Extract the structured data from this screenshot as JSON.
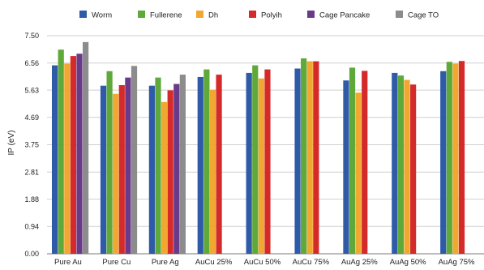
{
  "chart_data": {
    "type": "bar",
    "title": "",
    "xlabel": "",
    "ylabel": "IP (eV)",
    "ylim": [
      0,
      7.5
    ],
    "yticks": [
      "0.00",
      "0.94",
      "1.88",
      "2.81",
      "3.75",
      "4.69",
      "5.63",
      "6.56",
      "7.50"
    ],
    "grid": true,
    "legend_position": "top",
    "categories": [
      "Pure Au",
      "Pure Cu",
      "Pure Ag",
      "AuCu 25%",
      "AuCu 50%",
      "AuCu 75%",
      "AuAg 25%",
      "AuAg 50%",
      "AuAg 75%"
    ],
    "series": [
      {
        "name": "Worm",
        "color": "#2e5aa8",
        "values": [
          6.48,
          5.78,
          5.78,
          6.08,
          6.22,
          6.37,
          5.96,
          6.22,
          6.28
        ]
      },
      {
        "name": "Fullerene",
        "color": "#5fa83a",
        "values": [
          7.02,
          6.28,
          6.06,
          6.34,
          6.48,
          6.72,
          6.4,
          6.13,
          6.6
        ]
      },
      {
        "name": "Dh",
        "color": "#f0a830",
        "values": [
          6.54,
          5.5,
          5.22,
          5.64,
          6.03,
          6.62,
          5.54,
          5.98,
          6.54
        ]
      },
      {
        "name": "Polyih",
        "color": "#d42a2a",
        "values": [
          6.8,
          5.8,
          5.62,
          6.16,
          6.34,
          6.62,
          6.29,
          5.82,
          6.63
        ]
      },
      {
        "name": "Cage Pancake",
        "color": "#6a3a8a",
        "values": [
          6.88,
          6.06,
          5.84,
          null,
          null,
          null,
          null,
          null,
          null
        ]
      },
      {
        "name": "Cage TO",
        "color": "#8c8c8c",
        "values": [
          7.28,
          6.46,
          6.16,
          null,
          null,
          null,
          null,
          null,
          null
        ]
      }
    ]
  }
}
